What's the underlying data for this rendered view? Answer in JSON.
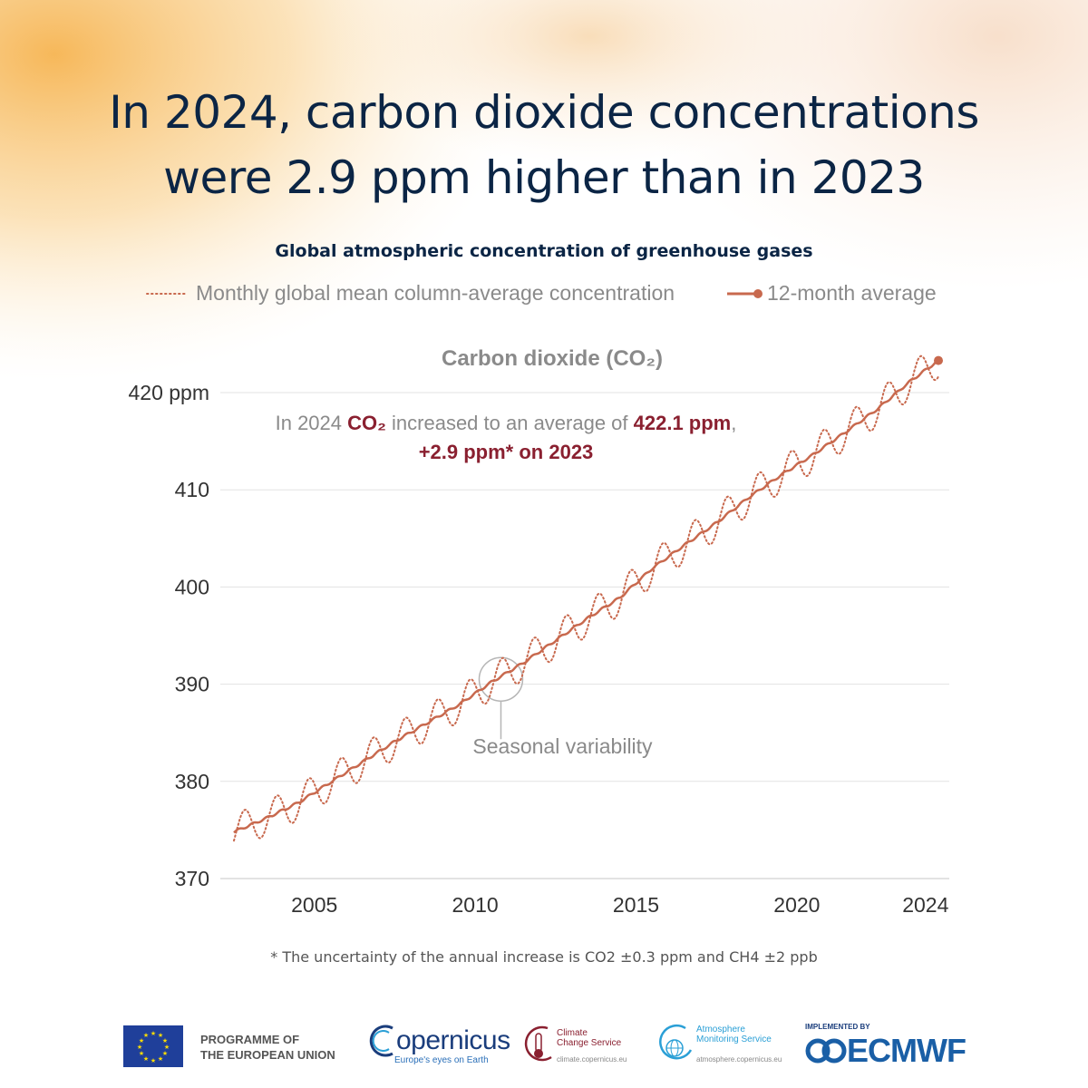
{
  "headline": {
    "line1": "In 2024, carbon dioxide concentrations",
    "line2": "were 2.9 ppm higher than in 2023"
  },
  "subtitle": "Global atmospheric concentration of greenhouse gases",
  "legend": {
    "monthly": "Monthly global mean column-average concentration",
    "average": "12-month average"
  },
  "footnote": "* The uncertainty of the annual increase is CO2 ±0.3 ppm and CH4 ±2 ppb",
  "footer": {
    "eu_line1": "PROGRAMME OF",
    "eu_line2": "THE EUROPEAN UNION",
    "copernicus_name": "opernicus",
    "copernicus_tagline": "Europe's eyes on Earth",
    "c3s_line1": "Climate",
    "c3s_line2": "Change Service",
    "c3s_url": "climate.copernicus.eu",
    "cams_line1": "Atmosphere",
    "cams_line2": "Monitoring Service",
    "cams_url": "atmosphere.copernicus.eu",
    "ecmwf_implemented": "IMPLEMENTED BY",
    "ecmwf_name": "ECMWF"
  },
  "colors": {
    "line": "#c8694e",
    "highlight": "#8a2030",
    "headline": "#0b2545",
    "grid": "#e3e3e3",
    "axis_text": "#333333",
    "muted_text": "#8a8a8a"
  },
  "chart_data": {
    "type": "line",
    "title": "Carbon dioxide (CO₂)",
    "ylabel": "",
    "xlabel": "",
    "ylim": [
      370,
      423
    ],
    "xlim": [
      2003.0,
      2024.9
    ],
    "y_ticks": [
      {
        "value": 370,
        "label": "370"
      },
      {
        "value": 380,
        "label": "380"
      },
      {
        "value": 390,
        "label": "390"
      },
      {
        "value": 400,
        "label": "400"
      },
      {
        "value": 410,
        "label": "410"
      },
      {
        "value": 420,
        "label": "420 ppm"
      }
    ],
    "x_ticks": [
      {
        "value": 2005.5,
        "label": "2005"
      },
      {
        "value": 2010.5,
        "label": "2010"
      },
      {
        "value": 2015.5,
        "label": "2015"
      },
      {
        "value": 2020.5,
        "label": "2020"
      },
      {
        "value": 2024.5,
        "label": "2024"
      }
    ],
    "grid": true,
    "series": [
      {
        "name": "Monthly global mean column-average concentration",
        "style": "dotted",
        "seasonal_amplitude": 1.8,
        "seasonal_peak_month": 4,
        "start": 2003.0,
        "end": 2024.9,
        "step": 0.0833
      },
      {
        "name": "12-month average",
        "style": "solid",
        "x": [
          2003.0,
          2004.0,
          2005.0,
          2006.0,
          2007.0,
          2008.0,
          2009.0,
          2010.0,
          2011.0,
          2012.0,
          2013.0,
          2014.0,
          2015.0,
          2016.0,
          2017.0,
          2018.0,
          2019.0,
          2020.0,
          2021.0,
          2022.0,
          2023.0,
          2024.0,
          2024.9
        ],
        "y": [
          374.8,
          376.2,
          377.8,
          379.9,
          382.0,
          384.1,
          386.0,
          387.9,
          390.2,
          392.2,
          394.5,
          396.8,
          398.9,
          401.9,
          404.3,
          406.6,
          409.2,
          411.5,
          413.6,
          415.9,
          418.3,
          421.1,
          423.3
        ]
      }
    ],
    "annotations": [
      {
        "id": "increase",
        "prefix": "In 2024 ",
        "gas": "CO₂",
        "middle": " increased to an average of ",
        "value": "422.1 ppm",
        "suffix": ",",
        "line2": "+2.9 ppm* on 2023"
      },
      {
        "id": "seasonal",
        "text": "Seasonal variability",
        "x": 2011.3,
        "y": 390.5
      }
    ]
  }
}
